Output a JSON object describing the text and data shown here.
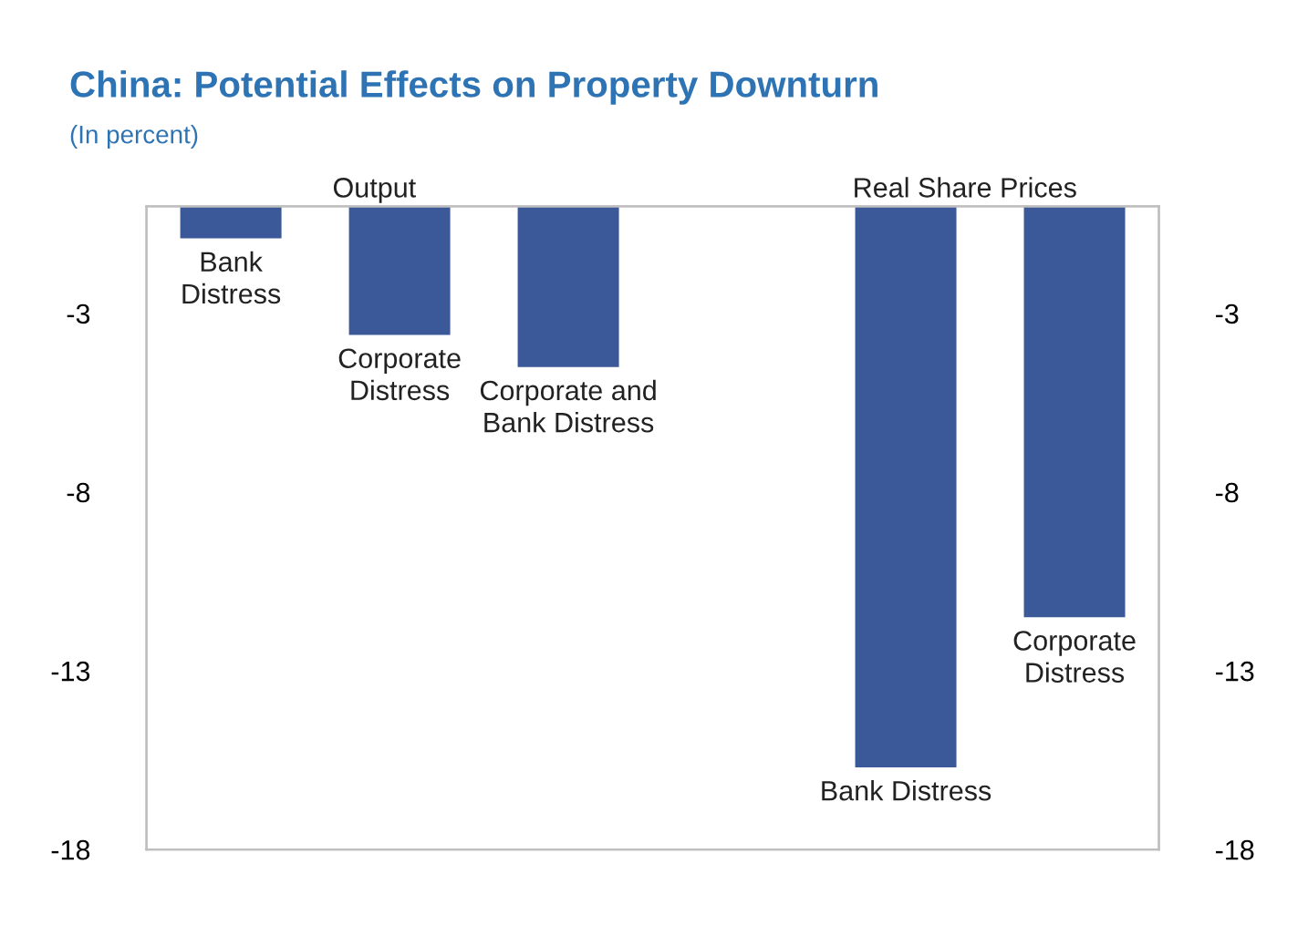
{
  "chart_data": {
    "type": "bar",
    "title": "China: Potential Effects on Property Downturn",
    "subtitle": "(In percent)",
    "categories": [
      "Bank\nDistress",
      "Corporate\nDistress",
      "Corporate and\nBank Distress",
      null,
      "Bank Distress",
      "Corporate\nDistress"
    ],
    "values": [
      -0.9,
      -3.6,
      -4.5,
      null,
      -15.7,
      -11.5
    ],
    "color": "#3b5998",
    "annotations": [
      "Output",
      "Real Share Prices"
    ],
    "ylim": [
      -18,
      0
    ],
    "yticks": [
      -3,
      -8,
      -13,
      -18
    ],
    "y2lim": [
      -18,
      0
    ],
    "y2ticks": [
      -3,
      -8,
      -13,
      -18
    ],
    "grid": false,
    "legend": false
  }
}
